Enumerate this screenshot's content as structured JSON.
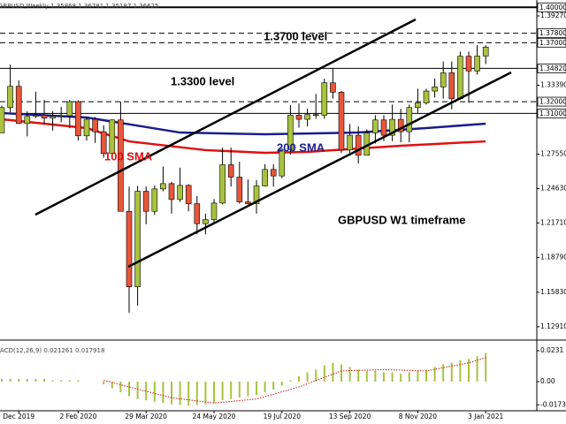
{
  "chart_data": {
    "type": "candlestick",
    "title": "GBPUSD,Weekly  1.35868 1.36781 1.35187 1.36625",
    "categories": [
      null,
      null,
      "Dec 2019",
      null,
      null,
      null,
      null,
      null,
      null,
      "2 Feb 2020",
      null,
      null,
      null,
      null,
      null,
      null,
      null,
      "29 Mar 2020",
      null,
      null,
      null,
      null,
      null,
      null,
      null,
      "24 May 2020",
      null,
      null,
      null,
      null,
      null,
      null,
      null,
      "19 Jul 2020",
      null,
      null,
      null,
      null,
      null,
      null,
      null,
      "13 Sep 2020",
      null,
      null,
      null,
      null,
      null,
      null,
      null,
      "8 Nov 2020",
      null,
      null,
      null,
      null,
      null,
      null,
      null,
      "3 Jan 2021"
    ],
    "open": [
      1.2935,
      1.315,
      1.333,
      1.3015,
      1.3075,
      1.3085,
      1.306,
      1.3075,
      1.308,
      1.32,
      1.291,
      1.305,
      1.2945,
      1.276,
      1.3045,
      1.227,
      1.163,
      1.244,
      1.227,
      1.246,
      1.2505,
      1.237,
      1.249,
      1.2335,
      1.2165,
      1.22,
      1.234,
      1.2665,
      1.256,
      1.235,
      1.2335,
      1.2485,
      1.2625,
      1.257,
      1.2795,
      1.3085,
      1.305,
      1.309,
      1.3085,
      1.336,
      1.328,
      1.279,
      1.2915,
      1.2745,
      1.2935,
      1.3045,
      1.2915,
      1.305,
      1.2945,
      1.315,
      1.319,
      1.329,
      1.3325,
      1.3445,
      1.3225,
      1.3585,
      1.346,
      1.35868
    ],
    "high": [
      1.3166,
      1.3514,
      1.338,
      1.3118,
      1.3285,
      1.3215,
      1.312,
      1.3155,
      1.3215,
      1.3212,
      1.307,
      1.307,
      1.3,
      1.305,
      1.32,
      1.248,
      1.2485,
      1.248,
      1.249,
      1.265,
      1.252,
      1.264,
      1.25,
      1.24,
      1.225,
      1.2375,
      1.281,
      1.281,
      1.269,
      1.254,
      1.2535,
      1.267,
      1.267,
      1.2805,
      1.317,
      1.3185,
      1.314,
      1.3265,
      1.3395,
      1.3485,
      1.329,
      1.301,
      1.299,
      1.2965,
      1.3085,
      1.3085,
      1.3175,
      1.314,
      1.3175,
      1.331,
      1.331,
      1.3395,
      1.354,
      1.354,
      1.3625,
      1.3625,
      1.368,
      1.36781
    ],
    "low": [
      1.2935,
      1.311,
      1.301,
      1.2905,
      1.306,
      1.301,
      1.2955,
      1.3025,
      1.2975,
      1.287,
      1.287,
      1.285,
      1.2725,
      1.2725,
      1.227,
      1.141,
      1.147,
      1.216,
      1.224,
      1.244,
      1.225,
      1.235,
      1.227,
      1.2075,
      1.2075,
      1.2165,
      1.233,
      1.248,
      1.2335,
      1.233,
      1.225,
      1.248,
      1.248,
      1.255,
      1.275,
      1.298,
      1.299,
      1.3055,
      1.3055,
      1.3225,
      1.2765,
      1.2765,
      1.2675,
      1.2745,
      1.2845,
      1.2865,
      1.2865,
      1.2855,
      1.2855,
      1.3105,
      1.3175,
      1.3235,
      1.3225,
      1.3135,
      1.3215,
      1.319,
      1.343,
      1.35187
    ],
    "close": [
      1.315,
      1.333,
      1.3015,
      1.3075,
      1.3085,
      1.306,
      1.3075,
      1.308,
      1.32,
      1.291,
      1.305,
      1.2945,
      1.276,
      1.3045,
      1.227,
      1.163,
      1.244,
      1.227,
      1.246,
      1.2505,
      1.237,
      1.249,
      1.2335,
      1.2165,
      1.22,
      1.234,
      1.2665,
      1.256,
      1.235,
      1.2335,
      1.2485,
      1.2625,
      1.257,
      1.2795,
      1.3085,
      1.305,
      1.309,
      1.3085,
      1.336,
      1.328,
      1.279,
      1.2915,
      1.2745,
      1.2935,
      1.3045,
      1.2915,
      1.305,
      1.2945,
      1.315,
      1.319,
      1.329,
      1.3325,
      1.3445,
      1.3225,
      1.3585,
      1.346,
      1.3587,
      1.36625
    ],
    "up_color": "#a9c23f",
    "down_color": "#e8563a",
    "ylim": [
      1.1193,
      1.4062
    ],
    "yticks": [
      {
        "value": 1.3927,
        "label": "1.39270"
      },
      {
        "value": 1.3339,
        "label": "1.33390"
      },
      {
        "value": 1.2755,
        "label": "1.27550"
      },
      {
        "value": 1.2463,
        "label": "1.24630"
      },
      {
        "value": 1.2171,
        "label": "1.21710"
      },
      {
        "value": 1.1879,
        "label": "1.18790"
      },
      {
        "value": 1.1583,
        "label": "1.15830"
      },
      {
        "value": 1.1291,
        "label": "1.12910"
      }
    ],
    "levels": [
      {
        "value": 1.4,
        "label": "1.40000",
        "style": "solid"
      },
      {
        "value": 1.378,
        "label": "1.37800",
        "style": "dashed"
      },
      {
        "value": 1.37,
        "label": "1.37000",
        "style": "dashed"
      },
      {
        "value": 1.3482,
        "label": "1.34820",
        "style": "solid"
      },
      {
        "value": 1.32,
        "label": "1.32000",
        "style": "dashed"
      },
      {
        "value": 1.31,
        "label": "1.31000",
        "style": "solid"
      }
    ],
    "overlays": [
      {
        "name": "100 SMA",
        "color": "#e01010",
        "x": [
          0,
          10,
          15,
          24,
          31,
          36,
          47,
          57
        ],
        "values": [
          1.3051,
          1.2976,
          1.2863,
          1.2789,
          1.2766,
          1.2774,
          1.2826,
          1.2863
        ]
      },
      {
        "name": "200 SMA",
        "color": "#1c1c8c",
        "x": [
          0,
          10,
          21,
          31,
          42,
          50,
          57
        ],
        "values": [
          1.3103,
          1.3066,
          1.2938,
          1.2923,
          1.2938,
          1.2976,
          1.3013
        ]
      }
    ],
    "annotations": [
      "1.3700 level",
      "1.3300 level",
      "GBPUSD W1 timeframe"
    ],
    "macd": {
      "type": "bar",
      "title": "MACD(12,26,9) 0.021261 0.017918",
      "color": "#a9c23f",
      "values": [
        0.002,
        0.002,
        0.002,
        0.002,
        0.002,
        0.002,
        0.001,
        0.001,
        0.001,
        0.001,
        0,
        0,
        -0.002,
        -0.005,
        -0.008,
        -0.011,
        -0.013,
        -0.014,
        -0.015,
        -0.016,
        -0.017,
        -0.0175,
        -0.018,
        -0.0175,
        -0.017,
        -0.016,
        -0.014,
        -0.013,
        -0.012,
        -0.011,
        -0.01,
        -0.008,
        -0.006,
        -0.003,
        0.001,
        0.004,
        0.007,
        0.009,
        0.012,
        0.014,
        0.013,
        0.011,
        0.009,
        0.008,
        0.008,
        0.007,
        0.007,
        0.006,
        0.007,
        0.008,
        0.009,
        0.011,
        0.013,
        0.014,
        0.016,
        0.017,
        0.019,
        0.021261
      ],
      "signal": {
        "color": "#e01010",
        "x": [
          12,
          15,
          20,
          25,
          30,
          35,
          40,
          45,
          50,
          55,
          57
        ],
        "values": [
          0.001,
          -0.004,
          -0.012,
          -0.016,
          -0.013,
          -0.004,
          0.008,
          0.009,
          0.008,
          0.014,
          0.017918
        ]
      },
      "ylim": [
        -0.0218,
        0.0304
      ],
      "yticks": [
        0.0231,
        {
          "value": 0,
          "label": "0.00"
        },
        -0.01735
      ]
    }
  }
}
